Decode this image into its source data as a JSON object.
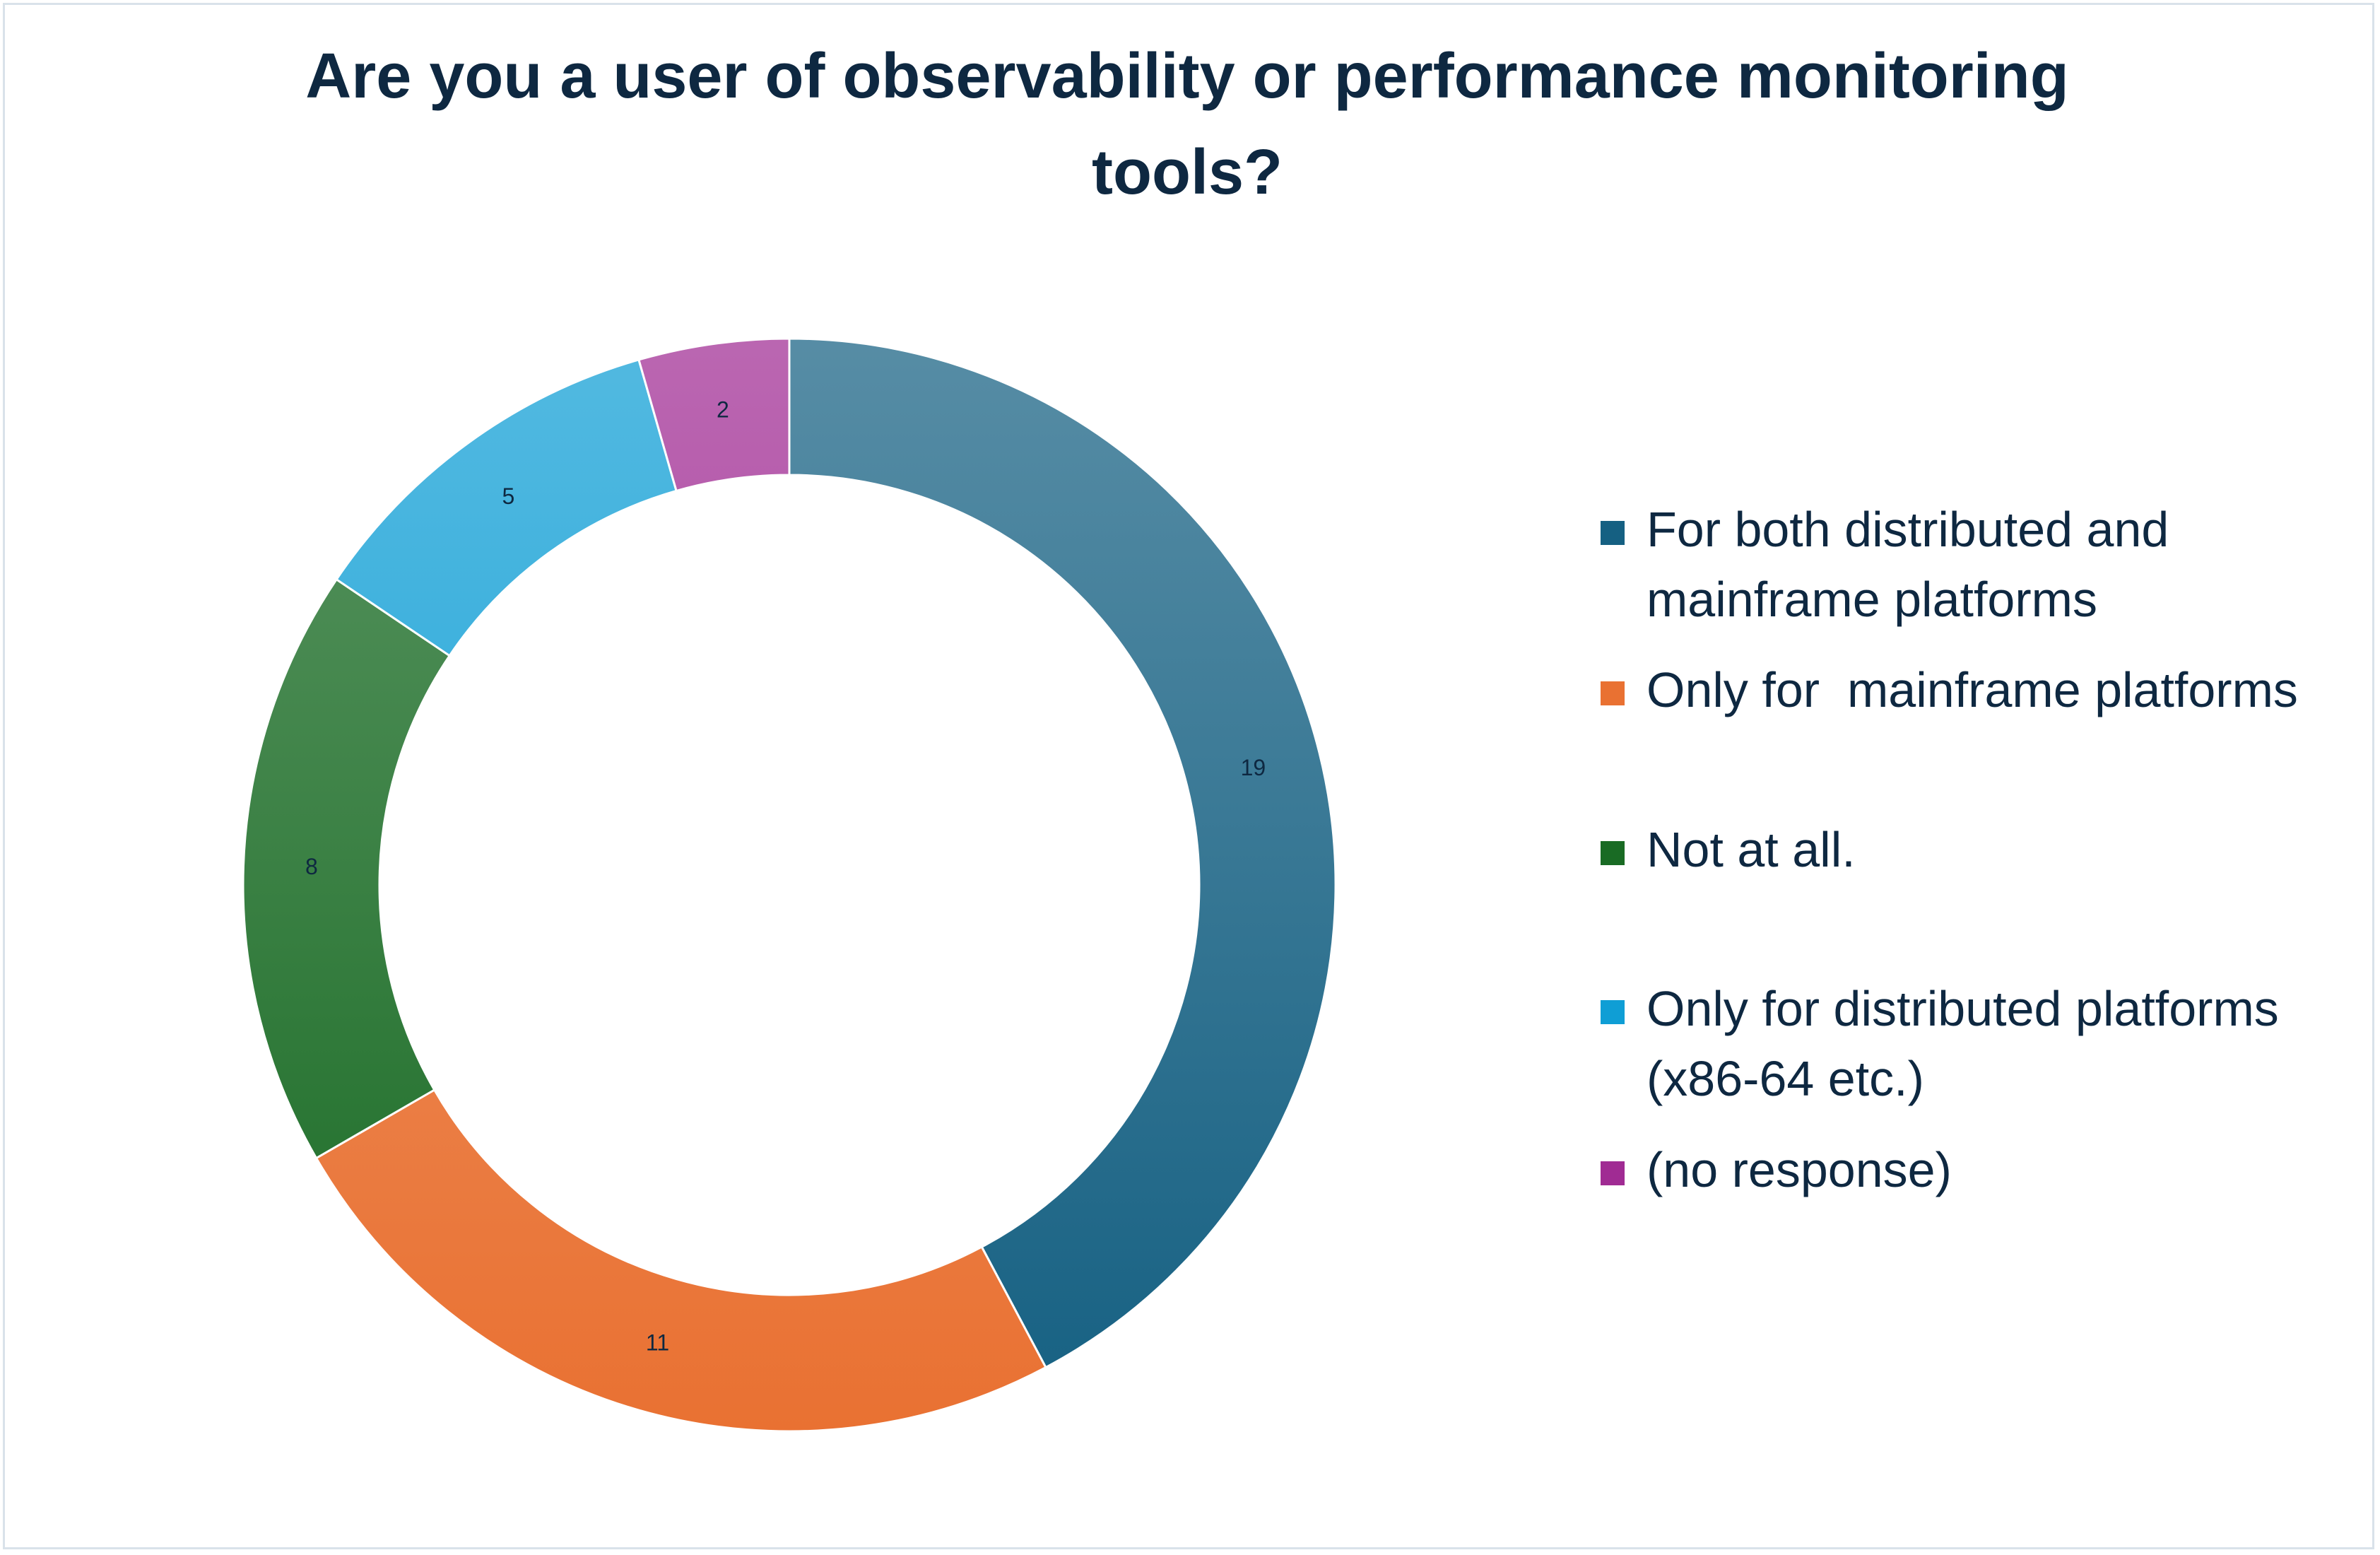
{
  "chart_data": {
    "type": "donut",
    "title": "Are you a user of observability or performance monitoring tools?",
    "categories": [
      "For both distributed and mainframe platforms",
      "Only for  mainframe platforms",
      "Not at all.",
      "Only for distributed platforms (x86-64 etc.)",
      "(no response)"
    ],
    "values": [
      19,
      11,
      8,
      5,
      2
    ],
    "colors": [
      "#156082",
      "#e97132",
      "#196b24",
      "#0f9ed5",
      "#a02b93"
    ],
    "legend": "right"
  }
}
